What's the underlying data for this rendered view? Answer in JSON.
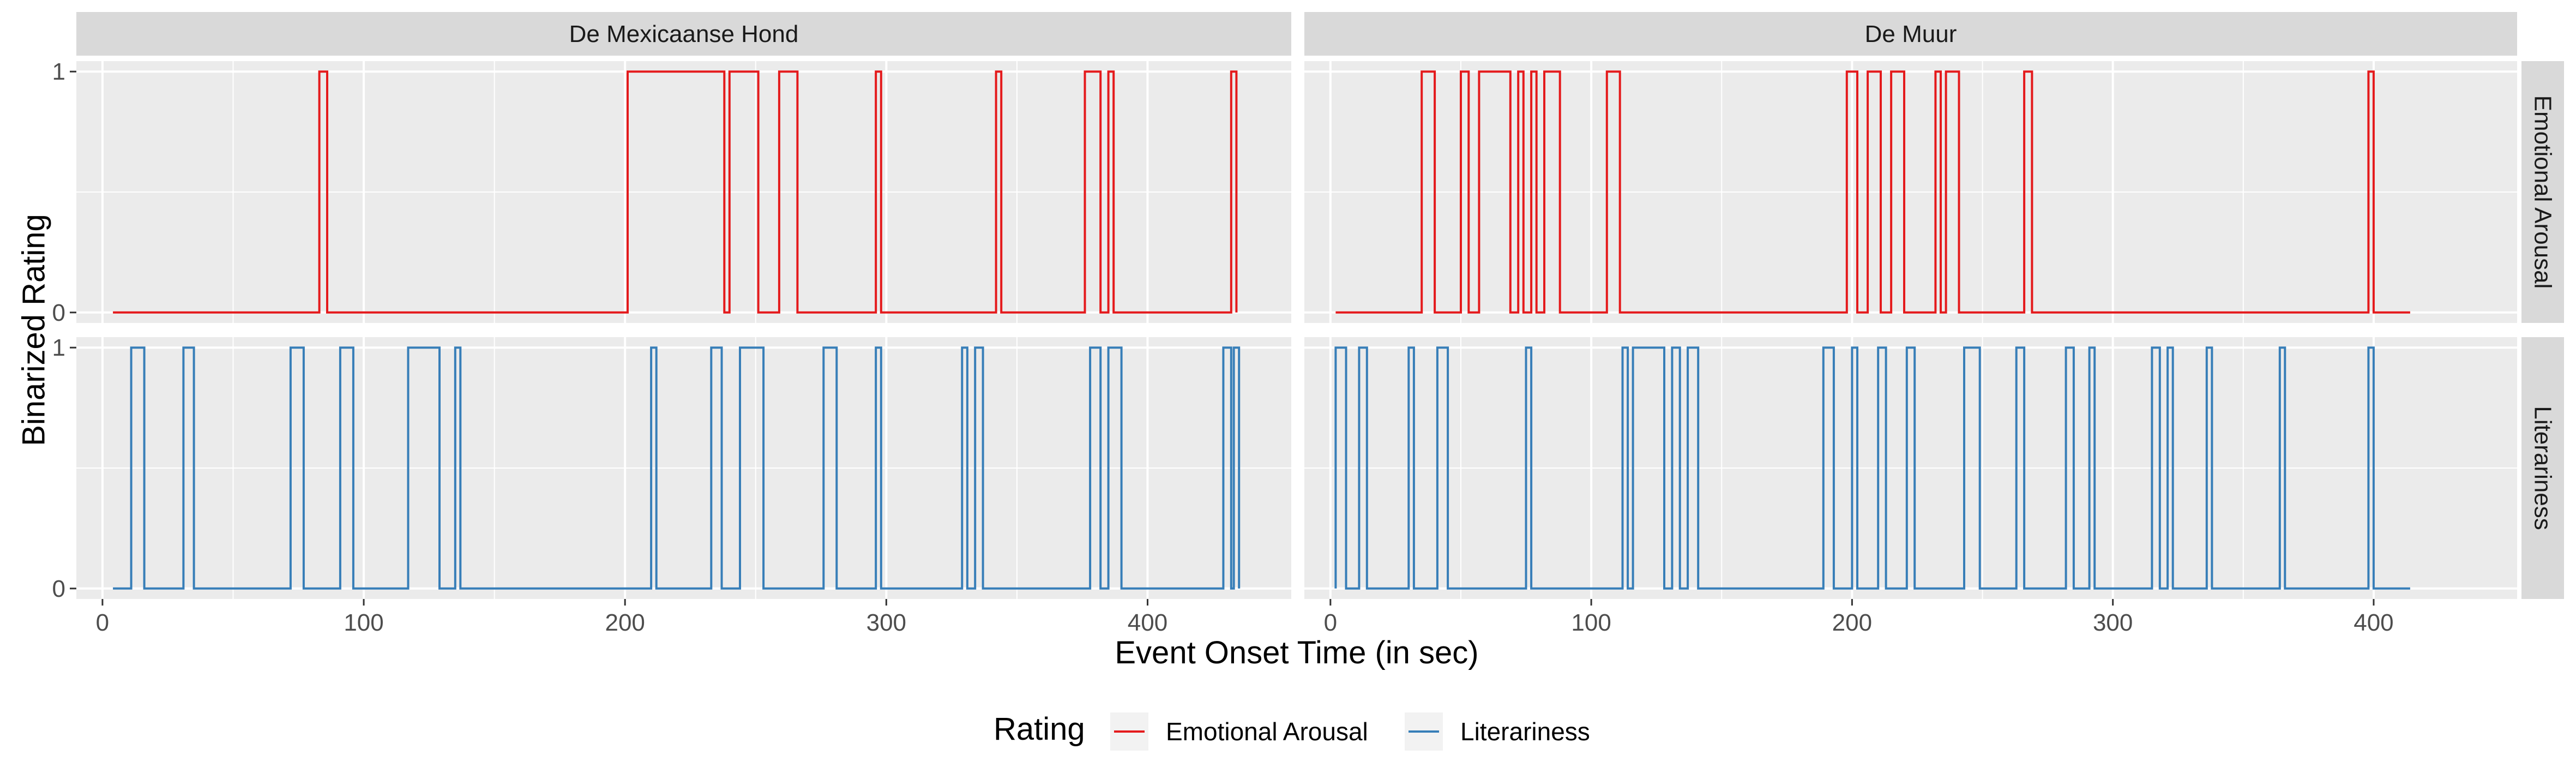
{
  "chart_data": {
    "type": "line",
    "step": true,
    "xlabel": "Event Onset Time (in sec)",
    "ylabel": "Binarized Rating",
    "xlim": [
      -10,
      455
    ],
    "ylim": [
      0,
      1
    ],
    "x_ticks": [
      0,
      100,
      200,
      300,
      400
    ],
    "y_ticks": [
      0,
      1
    ],
    "grid": true,
    "legend_position": "bottom",
    "legend_title": "Rating",
    "columns": [
      "De Mexicaanse Hond",
      "De Muur"
    ],
    "rows": [
      "Emotional Arousal",
      "Literariness"
    ],
    "colors": {
      "Emotional Arousal": "#e41a1c",
      "Literariness": "#377eb8"
    },
    "legend": [
      {
        "name": "Emotional Arousal",
        "color": "#e41a1c"
      },
      {
        "name": "Literariness",
        "color": "#377eb8"
      }
    ],
    "panels": [
      {
        "column": "De Mexicaanse Hond",
        "row": "Emotional Arousal",
        "x_start": 4,
        "x_end": 434,
        "high_intervals": [
          [
            83,
            86
          ],
          [
            201,
            238
          ],
          [
            240,
            251
          ],
          [
            259,
            266
          ],
          [
            296,
            298
          ],
          [
            342,
            344
          ],
          [
            376,
            382
          ],
          [
            385,
            387
          ],
          [
            432,
            434
          ]
        ]
      },
      {
        "column": "De Muur",
        "row": "Emotional Arousal",
        "x_start": 2,
        "x_end": 414,
        "high_intervals": [
          [
            35,
            40
          ],
          [
            50,
            53
          ],
          [
            57,
            69
          ],
          [
            72,
            74
          ],
          [
            77,
            79
          ],
          [
            82,
            88
          ],
          [
            106,
            111
          ],
          [
            198,
            202
          ],
          [
            206,
            211
          ],
          [
            215,
            220
          ],
          [
            232,
            234
          ],
          [
            236,
            241
          ],
          [
            266,
            269
          ],
          [
            398,
            400
          ]
        ]
      },
      {
        "column": "De Mexicaanse Hond",
        "row": "Literariness",
        "x_start": 4,
        "x_end": 435,
        "high_intervals": [
          [
            11,
            16
          ],
          [
            31,
            35
          ],
          [
            72,
            77
          ],
          [
            91,
            96
          ],
          [
            117,
            129
          ],
          [
            135,
            137
          ],
          [
            210,
            212
          ],
          [
            233,
            237
          ],
          [
            244,
            253
          ],
          [
            276,
            281
          ],
          [
            296,
            298
          ],
          [
            329,
            331
          ],
          [
            334,
            337
          ],
          [
            378,
            382
          ],
          [
            385,
            390
          ],
          [
            429,
            432
          ],
          [
            433,
            435
          ]
        ]
      },
      {
        "column": "De Muur",
        "row": "Literariness",
        "x_start": 2,
        "x_end": 414,
        "high_intervals": [
          [
            2,
            6
          ],
          [
            11,
            14
          ],
          [
            30,
            32
          ],
          [
            41,
            45
          ],
          [
            75,
            77
          ],
          [
            112,
            114
          ],
          [
            116,
            128
          ],
          [
            131,
            134
          ],
          [
            137,
            141
          ],
          [
            189,
            193
          ],
          [
            200,
            202
          ],
          [
            210,
            213
          ],
          [
            221,
            224
          ],
          [
            243,
            249
          ],
          [
            263,
            266
          ],
          [
            282,
            285
          ],
          [
            291,
            293
          ],
          [
            315,
            318
          ],
          [
            321,
            323
          ],
          [
            336,
            338
          ],
          [
            364,
            366
          ],
          [
            398,
            400
          ]
        ]
      }
    ]
  }
}
